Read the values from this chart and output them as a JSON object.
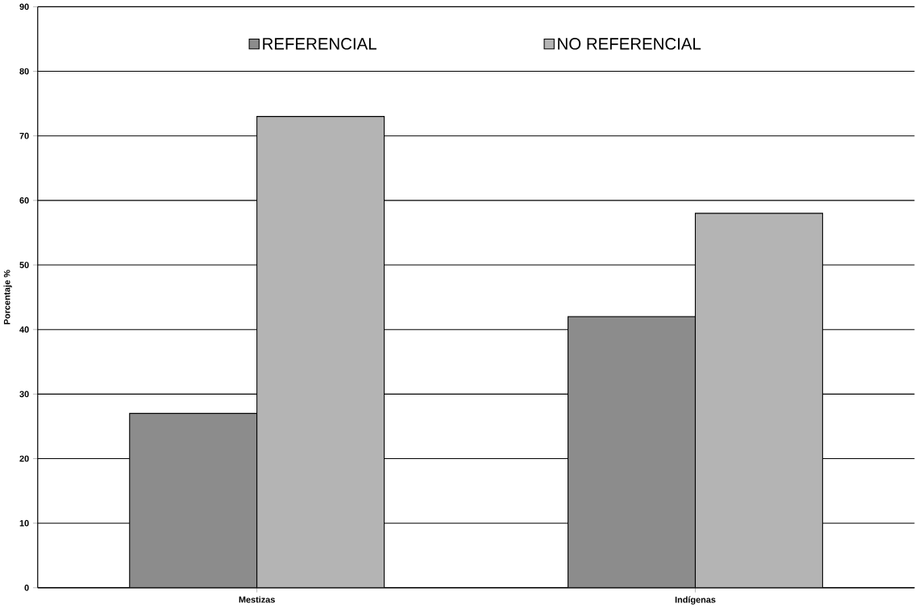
{
  "chart_data": {
    "type": "bar",
    "ylabel": "Porcentaje %",
    "categories": [
      "Mestizas",
      "Indígenas"
    ],
    "series": [
      {
        "name": "REFERENCIAL",
        "color": "#8c8c8c",
        "values": [
          27,
          42
        ]
      },
      {
        "name": "NO REFERENCIAL",
        "color": "#b4b4b4",
        "values": [
          73,
          58
        ]
      }
    ],
    "ylim": [
      0,
      90
    ],
    "yticks": [
      0,
      10,
      20,
      30,
      40,
      50,
      60,
      70,
      80,
      90
    ],
    "grid": "y",
    "legend": "top"
  }
}
